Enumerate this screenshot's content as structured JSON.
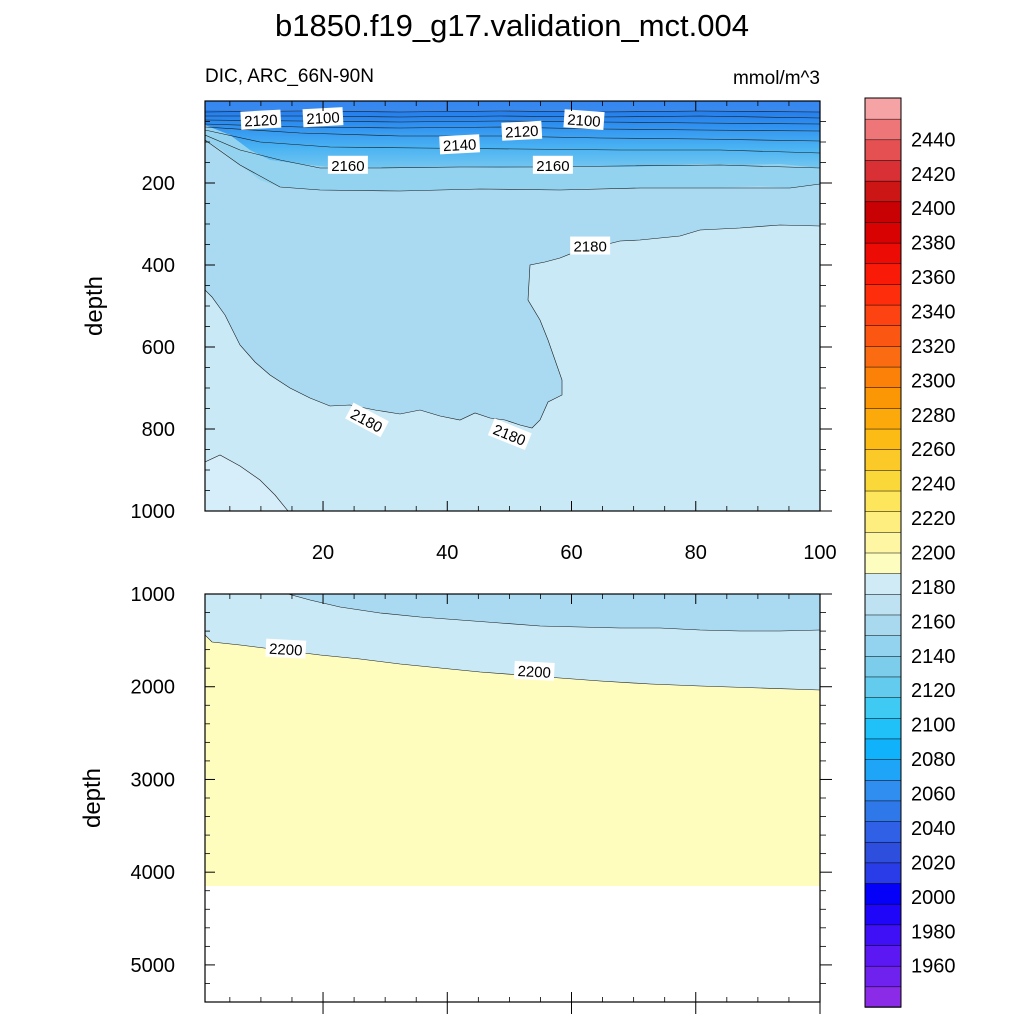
{
  "title": "b1850.f19_g17.validation_mct.004",
  "chart_data": {
    "type": "contour",
    "variable_label": "DIC, ARC_66N-90N",
    "units": "mmol/m^3",
    "x_ticks": [
      20,
      40,
      60,
      80,
      100
    ],
    "xlim": [
      1,
      100
    ],
    "panels": [
      {
        "ylabel": "depth",
        "ylim": [
          0,
          1000
        ],
        "y_ticks": [
          200,
          400,
          600,
          800,
          1000
        ],
        "contour_labels": [
          {
            "text": "2120",
            "x": 10,
            "y": 48,
            "rot": -3
          },
          {
            "text": "2100",
            "x": 20,
            "y": 42,
            "rot": -3
          },
          {
            "text": "2140",
            "x": 42,
            "y": 108,
            "rot": -3
          },
          {
            "text": "2120",
            "x": 52,
            "y": 75,
            "rot": -3
          },
          {
            "text": "2100",
            "x": 62,
            "y": 48,
            "rot": 4
          },
          {
            "text": "2160",
            "x": 24,
            "y": 158,
            "rot": 0
          },
          {
            "text": "2160",
            "x": 57,
            "y": 158,
            "rot": 0
          },
          {
            "text": "2180",
            "x": 63,
            "y": 355,
            "rot": 0
          },
          {
            "text": "2180",
            "x": 27,
            "y": 780,
            "rot": 28
          },
          {
            "text": "2180",
            "x": 50,
            "y": 815,
            "rot": 22
          }
        ]
      },
      {
        "ylabel": "depth",
        "ylim": [
          1000,
          5400
        ],
        "y_ticks": [
          1000,
          2000,
          3000,
          4000,
          5000
        ],
        "bottom_depth": 4120,
        "contour_labels": [
          {
            "text": "2200",
            "x": 14,
            "y": 1600,
            "rot": 3
          },
          {
            "text": "2200",
            "x": 54,
            "y": 1840,
            "rot": 3
          }
        ]
      }
    ],
    "colorbar": {
      "labels": [
        1960,
        1980,
        2000,
        2020,
        2040,
        2060,
        2080,
        2100,
        2120,
        2140,
        2160,
        2180,
        2200,
        2220,
        2240,
        2260,
        2280,
        2300,
        2320,
        2340,
        2360,
        2380,
        2400,
        2420,
        2440
      ],
      "colors": [
        "#8b2be8",
        "#6f22ee",
        "#5b18f2",
        "#3f10f5",
        "#1f06f8",
        "#0500f8",
        "#2a3be8",
        "#2e4ede",
        "#3060e6",
        "#2f78ea",
        "#2f8ef0",
        "#1ea5f8",
        "#10b3fb",
        "#20c0f8",
        "#3ecaf3",
        "#63ccee",
        "#7ccdeb",
        "#94d3ef",
        "#a9d9ef",
        "#bfe2f3",
        "#d1ebf6",
        "#fefdc0",
        "#fef6a2",
        "#feee80",
        "#fde65c",
        "#fbd83a",
        "#fcca28",
        "#fcbb15",
        "#fca90c",
        "#fb9604",
        "#fb8108",
        "#fb6b12",
        "#fb5713",
        "#fd4312",
        "#fe2d0b",
        "#f91a08",
        "#ed0b05",
        "#d80203",
        "#c80104",
        "#cc1616",
        "#d83034",
        "#e55153",
        "#ef7678",
        "#f6a3a6"
      ]
    },
    "fill_colors": {
      "level_2080_2090": "#3c8cf0",
      "level_2180_2190": "#a9daf1",
      "level_2190_2200": "#c9e9f7",
      "level_2200_2210": "#fefdbe"
    }
  }
}
